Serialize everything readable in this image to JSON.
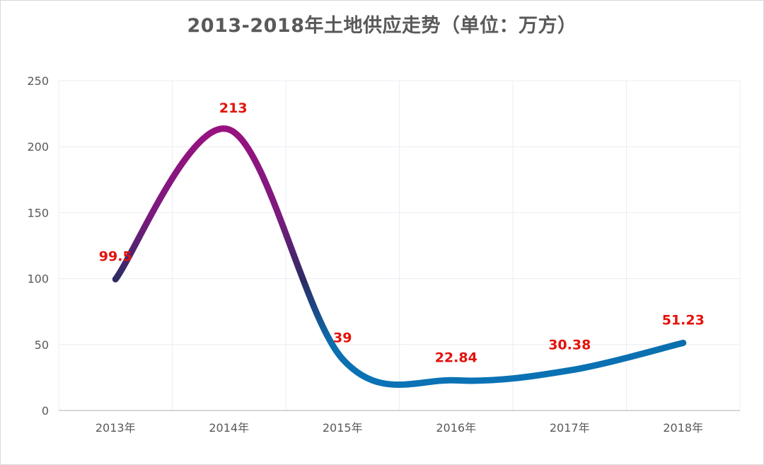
{
  "chart_data": {
    "type": "line",
    "title": "2013-2018年土地供应走势（单位：万方）",
    "categories": [
      "2013年",
      "2014年",
      "2015年",
      "2016年",
      "2017年",
      "2018年"
    ],
    "series": [
      {
        "values": [
          99.5,
          213,
          39,
          22.84,
          30.38,
          51.23
        ]
      }
    ],
    "data_labels": [
      "99.5",
      "213",
      "39",
      "22.84",
      "30.38",
      "51.23"
    ],
    "y_ticks": [
      "0",
      "50",
      "100",
      "150",
      "200",
      "250"
    ],
    "ylim": [
      0,
      250
    ],
    "smooth": true,
    "grid": true,
    "legend": "none",
    "line_gradient": [
      "#7b1a7e",
      "#98127f",
      "#2c2b63",
      "#0a6fae",
      "#0a72b5"
    ],
    "label_color": "#e3120b"
  }
}
